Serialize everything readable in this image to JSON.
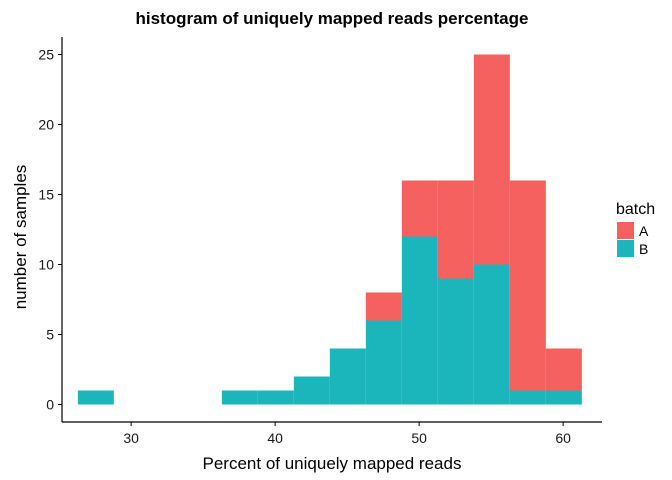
{
  "chart_data": {
    "type": "bar",
    "subtype": "stacked-histogram",
    "title": "histogram of uniquely mapped reads percentage",
    "xlabel": "Percent of uniquely mapped reads",
    "ylabel": "number of samples",
    "xlim": [
      25.2,
      62.7
    ],
    "ylim": [
      -1.25,
      26.25
    ],
    "x_ticks": [
      30,
      40,
      50,
      60
    ],
    "y_ticks": [
      0,
      5,
      10,
      15,
      20,
      25
    ],
    "bin_width": 2.5,
    "bins_start": [
      26.3,
      28.8,
      31.3,
      33.8,
      36.3,
      38.8,
      41.3,
      43.8,
      46.3,
      48.8,
      51.3,
      53.8,
      56.3,
      58.8
    ],
    "legend": {
      "title": "batch",
      "position": "right"
    },
    "grid": false,
    "series": [
      {
        "name": "B",
        "color": "#1bb6bc",
        "values": [
          1,
          0,
          0,
          0,
          1,
          1,
          2,
          4,
          6,
          12,
          9,
          10,
          1,
          1
        ]
      },
      {
        "name": "A",
        "color": "#f4615e",
        "values": [
          0,
          0,
          0,
          0,
          0,
          0,
          0,
          0,
          2,
          4,
          7,
          15,
          15,
          3
        ]
      }
    ]
  }
}
